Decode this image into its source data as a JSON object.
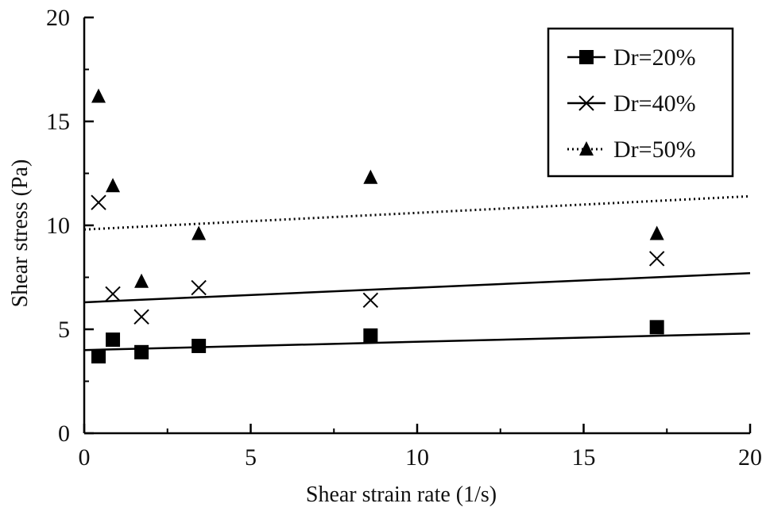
{
  "chart_data": {
    "type": "scatter",
    "xlabel": "Shear strain rate (1/s)",
    "ylabel": "Shear stress (Pa)",
    "xlim": [
      0,
      20
    ],
    "ylim": [
      0,
      20
    ],
    "xticks": [
      0,
      5,
      10,
      15,
      20
    ],
    "yticks": [
      0,
      5,
      10,
      15,
      20
    ],
    "grid": false,
    "legend_position": "top-right",
    "series": [
      {
        "name": "Dr=20%",
        "marker": "square",
        "line_style": "solid",
        "color": "#000000",
        "x": [
          0.43,
          0.86,
          1.72,
          3.44,
          8.6,
          17.2
        ],
        "y": [
          3.7,
          4.5,
          3.9,
          4.2,
          4.7,
          5.1
        ],
        "fit_line": {
          "x": [
            0,
            20
          ],
          "y": [
            4.0,
            4.8
          ]
        }
      },
      {
        "name": "Dr=40%",
        "marker": "x",
        "line_style": "solid",
        "color": "#000000",
        "x": [
          0.43,
          0.86,
          1.72,
          3.44,
          8.6,
          17.2
        ],
        "y": [
          11.1,
          6.7,
          5.6,
          7.0,
          6.4,
          8.4
        ],
        "fit_line": {
          "x": [
            0,
            20
          ],
          "y": [
            6.3,
            7.7
          ]
        }
      },
      {
        "name": "Dr=50%",
        "marker": "triangle",
        "line_style": "dotted",
        "color": "#000000",
        "x": [
          0.43,
          0.86,
          1.72,
          3.44,
          8.6,
          17.2
        ],
        "y": [
          16.2,
          11.9,
          7.3,
          9.6,
          12.3,
          9.6
        ],
        "fit_line": {
          "x": [
            0,
            20
          ],
          "y": [
            9.8,
            11.4
          ]
        }
      }
    ]
  }
}
